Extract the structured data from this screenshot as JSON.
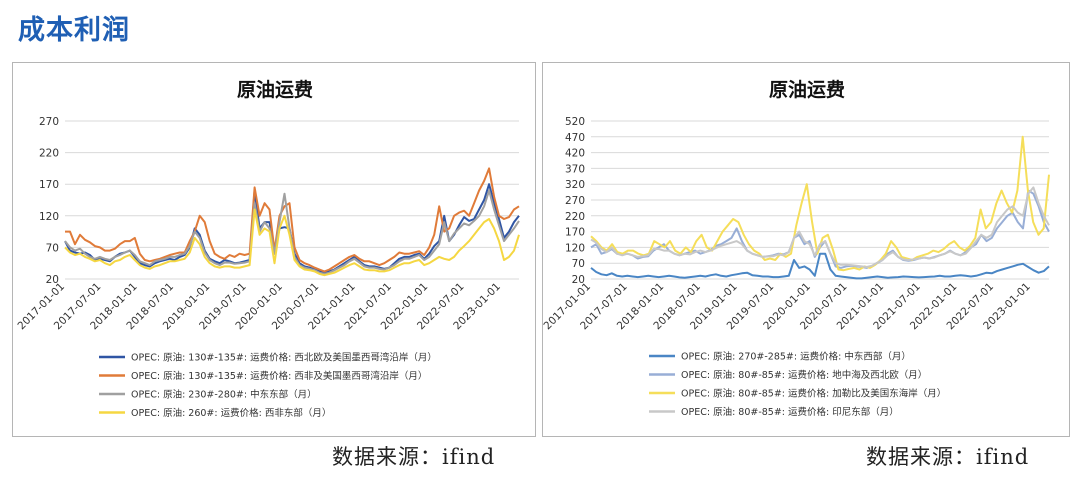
{
  "page_title": "成本利润",
  "source_left": "数据来源：ifind",
  "source_right": "数据来源：ifind",
  "chart_data": [
    {
      "type": "line",
      "title": "原油运费",
      "xlabel": "",
      "ylabel": "",
      "ylim": [
        20,
        270
      ],
      "yticks": [
        20,
        70,
        120,
        170,
        220,
        270
      ],
      "xticks": [
        "2017-01-01",
        "2017-07-01",
        "2018-01-01",
        "2018-07-01",
        "2019-01-01",
        "2019-07-01",
        "2020-01-01",
        "2020-07-01",
        "2021-01-01",
        "2021-07-01",
        "2022-01-01",
        "2022-07-01",
        "2023-01-01"
      ],
      "x_start": "2017-01",
      "x_end": "2023-04",
      "grid": true,
      "legend_position": "bottom",
      "series": [
        {
          "name": "OPEC: 原油: 130#-135#: 运费价格: 西北欧及美国墨西哥湾沿岸（月）",
          "color": "#2f55a4",
          "values": [
            80,
            65,
            62,
            60,
            62,
            58,
            50,
            52,
            50,
            48,
            55,
            60,
            62,
            65,
            55,
            45,
            42,
            40,
            45,
            48,
            50,
            52,
            50,
            55,
            58,
            70,
            100,
            90,
            65,
            52,
            48,
            45,
            50,
            48,
            45,
            46,
            48,
            50,
            160,
            100,
            110,
            110,
            60,
            100,
            102,
            100,
            60,
            45,
            40,
            38,
            35,
            32,
            30,
            32,
            35,
            40,
            45,
            50,
            55,
            48,
            42,
            40,
            40,
            38,
            36,
            38,
            45,
            52,
            55,
            55,
            58,
            60,
            52,
            60,
            72,
            80,
            120,
            80,
            90,
            105,
            118,
            112,
            115,
            130,
            145,
            170,
            140,
            115,
            85,
            95,
            110,
            120
          ]
        },
        {
          "name": "OPEC: 原油: 130#-135#: 运费价格: 西非及美国墨西哥湾沿岸（月）",
          "color": "#e07b39",
          "values": [
            95,
            95,
            75,
            90,
            82,
            78,
            72,
            70,
            65,
            65,
            68,
            75,
            80,
            80,
            85,
            60,
            50,
            48,
            50,
            52,
            55,
            58,
            60,
            62,
            62,
            80,
            95,
            120,
            110,
            80,
            60,
            55,
            52,
            58,
            55,
            60,
            58,
            60,
            165,
            120,
            140,
            130,
            65,
            120,
            135,
            140,
            70,
            50,
            45,
            42,
            38,
            35,
            32,
            35,
            40,
            45,
            50,
            55,
            58,
            52,
            48,
            48,
            45,
            42,
            45,
            50,
            55,
            62,
            60,
            60,
            62,
            64,
            58,
            70,
            90,
            135,
            95,
            100,
            120,
            125,
            128,
            120,
            140,
            160,
            175,
            195,
            150,
            120,
            115,
            118,
            130,
            135
          ]
        },
        {
          "name": "OPEC: 原油: 230#-280#: 中东东部（月）",
          "color": "#a0a0a0",
          "values": [
            80,
            70,
            65,
            68,
            60,
            55,
            52,
            55,
            52,
            50,
            55,
            58,
            62,
            65,
            58,
            48,
            45,
            42,
            48,
            50,
            52,
            55,
            55,
            58,
            60,
            72,
            95,
            85,
            62,
            50,
            45,
            42,
            46,
            46,
            44,
            45,
            46,
            48,
            140,
            95,
            110,
            100,
            60,
            110,
            155,
            100,
            55,
            42,
            38,
            36,
            34,
            30,
            28,
            30,
            34,
            38,
            42,
            48,
            52,
            46,
            40,
            38,
            38,
            36,
            35,
            38,
            42,
            48,
            52,
            52,
            55,
            58,
            50,
            55,
            65,
            75,
            110,
            80,
            92,
            100,
            108,
            105,
            112,
            120,
            135,
            160,
            130,
            105,
            80,
            90,
            100,
            112
          ]
        },
        {
          "name": "OPEC: 原油: 260#: 运费价格: 西非东部（月）",
          "color": "#f5d742",
          "values": [
            70,
            62,
            58,
            60,
            55,
            52,
            48,
            50,
            45,
            42,
            48,
            50,
            55,
            58,
            50,
            42,
            38,
            36,
            40,
            42,
            45,
            48,
            48,
            50,
            52,
            62,
            85,
            75,
            55,
            45,
            40,
            38,
            40,
            40,
            38,
            38,
            40,
            42,
            130,
            90,
            100,
            95,
            45,
            100,
            120,
            90,
            50,
            40,
            35,
            34,
            32,
            28,
            26,
            28,
            30,
            34,
            38,
            42,
            45,
            40,
            35,
            34,
            34,
            32,
            32,
            34,
            38,
            42,
            45,
            45,
            48,
            50,
            42,
            45,
            50,
            55,
            52,
            50,
            55,
            65,
            72,
            80,
            90,
            100,
            110,
            115,
            100,
            80,
            50,
            55,
            65,
            90
          ]
        }
      ]
    },
    {
      "type": "line",
      "title": "原油运费",
      "xlabel": "",
      "ylabel": "",
      "ylim": [
        20,
        520
      ],
      "yticks": [
        20,
        70,
        120,
        170,
        220,
        270,
        320,
        370,
        420,
        470,
        520
      ],
      "xticks": [
        "2017-01-01",
        "2017-07-01",
        "2018-01-01",
        "2018-07-01",
        "2019-01-01",
        "2019-07-01",
        "2020-01-01",
        "2020-07-01",
        "2021-01-01",
        "2021-07-01",
        "2022-01-01",
        "2022-07-01",
        "2023-01-01"
      ],
      "x_start": "2017-01",
      "x_end": "2023-04",
      "grid": true,
      "legend_position": "bottom",
      "series": [
        {
          "name": "OPEC: 原油: 270#-285#: 运费价格: 中东西部（月）",
          "color": "#4a86c5",
          "values": [
            55,
            42,
            35,
            32,
            38,
            30,
            28,
            30,
            28,
            26,
            28,
            30,
            28,
            26,
            28,
            30,
            28,
            25,
            24,
            26,
            28,
            30,
            28,
            32,
            35,
            30,
            28,
            32,
            35,
            38,
            40,
            32,
            30,
            28,
            28,
            26,
            26,
            28,
            30,
            80,
            55,
            60,
            50,
            30,
            100,
            100,
            50,
            30,
            28,
            26,
            24,
            22,
            22,
            24,
            26,
            28,
            26,
            24,
            25,
            26,
            28,
            27,
            26,
            25,
            26,
            27,
            28,
            30,
            28,
            28,
            30,
            32,
            30,
            28,
            30,
            35,
            40,
            38,
            45,
            50,
            55,
            60,
            65,
            68,
            58,
            48,
            40,
            45,
            60
          ]
        },
        {
          "name": "OPEC: 原油: 80#-85#: 运费价格: 地中海及西北欧（月）",
          "color": "#98aed6",
          "values": [
            120,
            130,
            100,
            105,
            115,
            100,
            98,
            100,
            95,
            85,
            90,
            92,
            110,
            120,
            130,
            110,
            100,
            95,
            100,
            105,
            110,
            100,
            105,
            112,
            125,
            130,
            140,
            150,
            180,
            140,
            110,
            100,
            95,
            90,
            92,
            95,
            100,
            98,
            105,
            150,
            160,
            130,
            140,
            90,
            120,
            140,
            100,
            60,
            55,
            60,
            62,
            60,
            58,
            55,
            60,
            70,
            80,
            100,
            110,
            90,
            80,
            78,
            80,
            85,
            88,
            85,
            90,
            95,
            100,
            110,
            100,
            95,
            105,
            120,
            130,
            160,
            140,
            150,
            180,
            200,
            220,
            230,
            200,
            180,
            300,
            290,
            250,
            200,
            170
          ]
        },
        {
          "name": "OPEC: 原油: 80#-85#: 运费价格: 加勒比及美国东海岸（月）",
          "color": "#f5de5a",
          "values": [
            155,
            140,
            120,
            110,
            130,
            105,
            100,
            110,
            110,
            100,
            95,
            100,
            140,
            130,
            120,
            140,
            110,
            100,
            120,
            105,
            140,
            160,
            120,
            110,
            140,
            170,
            190,
            210,
            200,
            160,
            130,
            110,
            100,
            80,
            85,
            80,
            100,
            90,
            100,
            190,
            260,
            320,
            200,
            100,
            150,
            160,
            110,
            50,
            48,
            52,
            55,
            50,
            60,
            55,
            65,
            80,
            100,
            140,
            120,
            90,
            85,
            80,
            90,
            95,
            100,
            110,
            105,
            115,
            130,
            140,
            120,
            110,
            125,
            150,
            240,
            180,
            200,
            260,
            300,
            260,
            230,
            300,
            470,
            300,
            200,
            160,
            180,
            350
          ]
        },
        {
          "name": "OPEC: 原油: 80#-85#: 运费价格: 印尼东部（月）",
          "color": "#c8c8c8",
          "values": [
            145,
            135,
            115,
            105,
            120,
            100,
            95,
            100,
            95,
            90,
            92,
            95,
            115,
            115,
            110,
            110,
            100,
            95,
            100,
            98,
            105,
            110,
            105,
            110,
            118,
            125,
            130,
            135,
            140,
            130,
            110,
            100,
            95,
            90,
            92,
            92,
            98,
            95,
            105,
            150,
            170,
            140,
            130,
            95,
            130,
            140,
            100,
            70,
            65,
            65,
            64,
            62,
            60,
            58,
            62,
            72,
            80,
            95,
            105,
            90,
            82,
            80,
            82,
            85,
            88,
            85,
            88,
            95,
            100,
            108,
            100,
            95,
            100,
            118,
            140,
            160,
            150,
            160,
            200,
            220,
            240,
            250,
            230,
            220,
            290,
            310,
            260,
            220,
            190
          ]
        }
      ]
    }
  ]
}
